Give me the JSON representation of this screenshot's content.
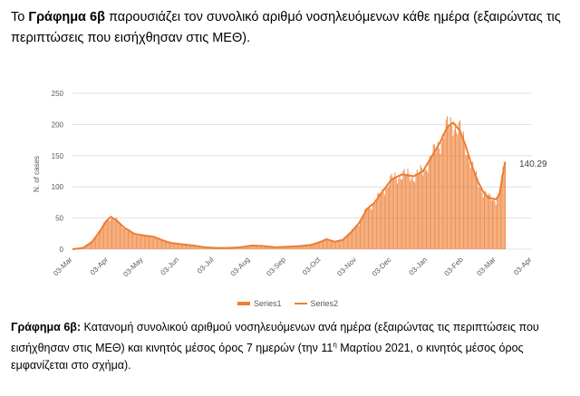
{
  "intro": {
    "prefix": "Το ",
    "figure_ref": "Γράφημα 6β",
    "text": " παρουσιάζει τον συνολικό αριθμό νοσηλευόμενων κάθε ημέρα (εξαιρώντας τις περιπτώσεις που εισήχθησαν στις ΜΕΘ)."
  },
  "caption": {
    "label": "Γράφημα 6β:",
    "text_before_sup": " Κατανομή συνολικού αριθμού νοσηλευόμενων ανά ημέρα (εξαιρώντας τις περιπτώσεις που εισήχθησαν στις ΜΕΘ) και κινητός μέσος όρος 7 ημερών (την 11",
    "sup": "η",
    "text_after_sup": " Μαρτίου 2021, ο κινητός μέσος όρος εμφανίζεται στο σχήμα)."
  },
  "chart_data": {
    "type": "bar",
    "ylabel": "N. of cases",
    "ylim": [
      0,
      250
    ],
    "yticks": [
      0,
      50,
      100,
      150,
      200,
      250
    ],
    "xticks": [
      "03-Mar",
      "03-Apr",
      "03-May",
      "03-Jun",
      "03-Jul",
      "03-Aug",
      "03-Sep",
      "03-Oct",
      "03-Nov",
      "03-Dec",
      "03-Jan",
      "03-Feb",
      "03-Mar",
      "03-Apr"
    ],
    "x_start": "2020-03-03",
    "x_end": "2021-04-03",
    "last_date": "2021-03-11",
    "grid": true,
    "legend": "bottom",
    "color": "#ed7d31",
    "annotation": "140.29",
    "series": [
      {
        "name": "Series1",
        "kind": "bar"
      },
      {
        "name": "Series2",
        "kind": "line"
      }
    ],
    "anchors": [
      {
        "date": "2020-03-03",
        "value": 0
      },
      {
        "date": "2020-03-12",
        "value": 2
      },
      {
        "date": "2020-03-20",
        "value": 12
      },
      {
        "date": "2020-03-27",
        "value": 30
      },
      {
        "date": "2020-04-01",
        "value": 45
      },
      {
        "date": "2020-04-05",
        "value": 52
      },
      {
        "date": "2020-04-10",
        "value": 46
      },
      {
        "date": "2020-04-17",
        "value": 34
      },
      {
        "date": "2020-04-25",
        "value": 25
      },
      {
        "date": "2020-05-03",
        "value": 22
      },
      {
        "date": "2020-05-12",
        "value": 20
      },
      {
        "date": "2020-05-20",
        "value": 14
      },
      {
        "date": "2020-05-27",
        "value": 10
      },
      {
        "date": "2020-06-05",
        "value": 8
      },
      {
        "date": "2020-06-15",
        "value": 6
      },
      {
        "date": "2020-06-25",
        "value": 3
      },
      {
        "date": "2020-07-05",
        "value": 2
      },
      {
        "date": "2020-07-15",
        "value": 2
      },
      {
        "date": "2020-07-25",
        "value": 3
      },
      {
        "date": "2020-08-05",
        "value": 6
      },
      {
        "date": "2020-08-15",
        "value": 5
      },
      {
        "date": "2020-08-25",
        "value": 3
      },
      {
        "date": "2020-09-05",
        "value": 4
      },
      {
        "date": "2020-09-15",
        "value": 5
      },
      {
        "date": "2020-09-25",
        "value": 7
      },
      {
        "date": "2020-10-03",
        "value": 12
      },
      {
        "date": "2020-10-08",
        "value": 16
      },
      {
        "date": "2020-10-15",
        "value": 12
      },
      {
        "date": "2020-10-22",
        "value": 15
      },
      {
        "date": "2020-10-29",
        "value": 27
      },
      {
        "date": "2020-11-05",
        "value": 42
      },
      {
        "date": "2020-11-12",
        "value": 65
      },
      {
        "date": "2020-11-18",
        "value": 74
      },
      {
        "date": "2020-11-25",
        "value": 92
      },
      {
        "date": "2020-12-03",
        "value": 112
      },
      {
        "date": "2020-12-12",
        "value": 120
      },
      {
        "date": "2020-12-22",
        "value": 117
      },
      {
        "date": "2020-12-30",
        "value": 125
      },
      {
        "date": "2021-01-07",
        "value": 150
      },
      {
        "date": "2021-01-14",
        "value": 172
      },
      {
        "date": "2021-01-20",
        "value": 196
      },
      {
        "date": "2021-01-25",
        "value": 203
      },
      {
        "date": "2021-01-31",
        "value": 190
      },
      {
        "date": "2021-02-05",
        "value": 165
      },
      {
        "date": "2021-02-10",
        "value": 135
      },
      {
        "date": "2021-02-15",
        "value": 110
      },
      {
        "date": "2021-02-20",
        "value": 92
      },
      {
        "date": "2021-02-25",
        "value": 82
      },
      {
        "date": "2021-03-03",
        "value": 80
      },
      {
        "date": "2021-03-06",
        "value": 88
      },
      {
        "date": "2021-03-08",
        "value": 110
      },
      {
        "date": "2021-03-10",
        "value": 132
      },
      {
        "date": "2021-03-11",
        "value": 140.29
      }
    ]
  }
}
